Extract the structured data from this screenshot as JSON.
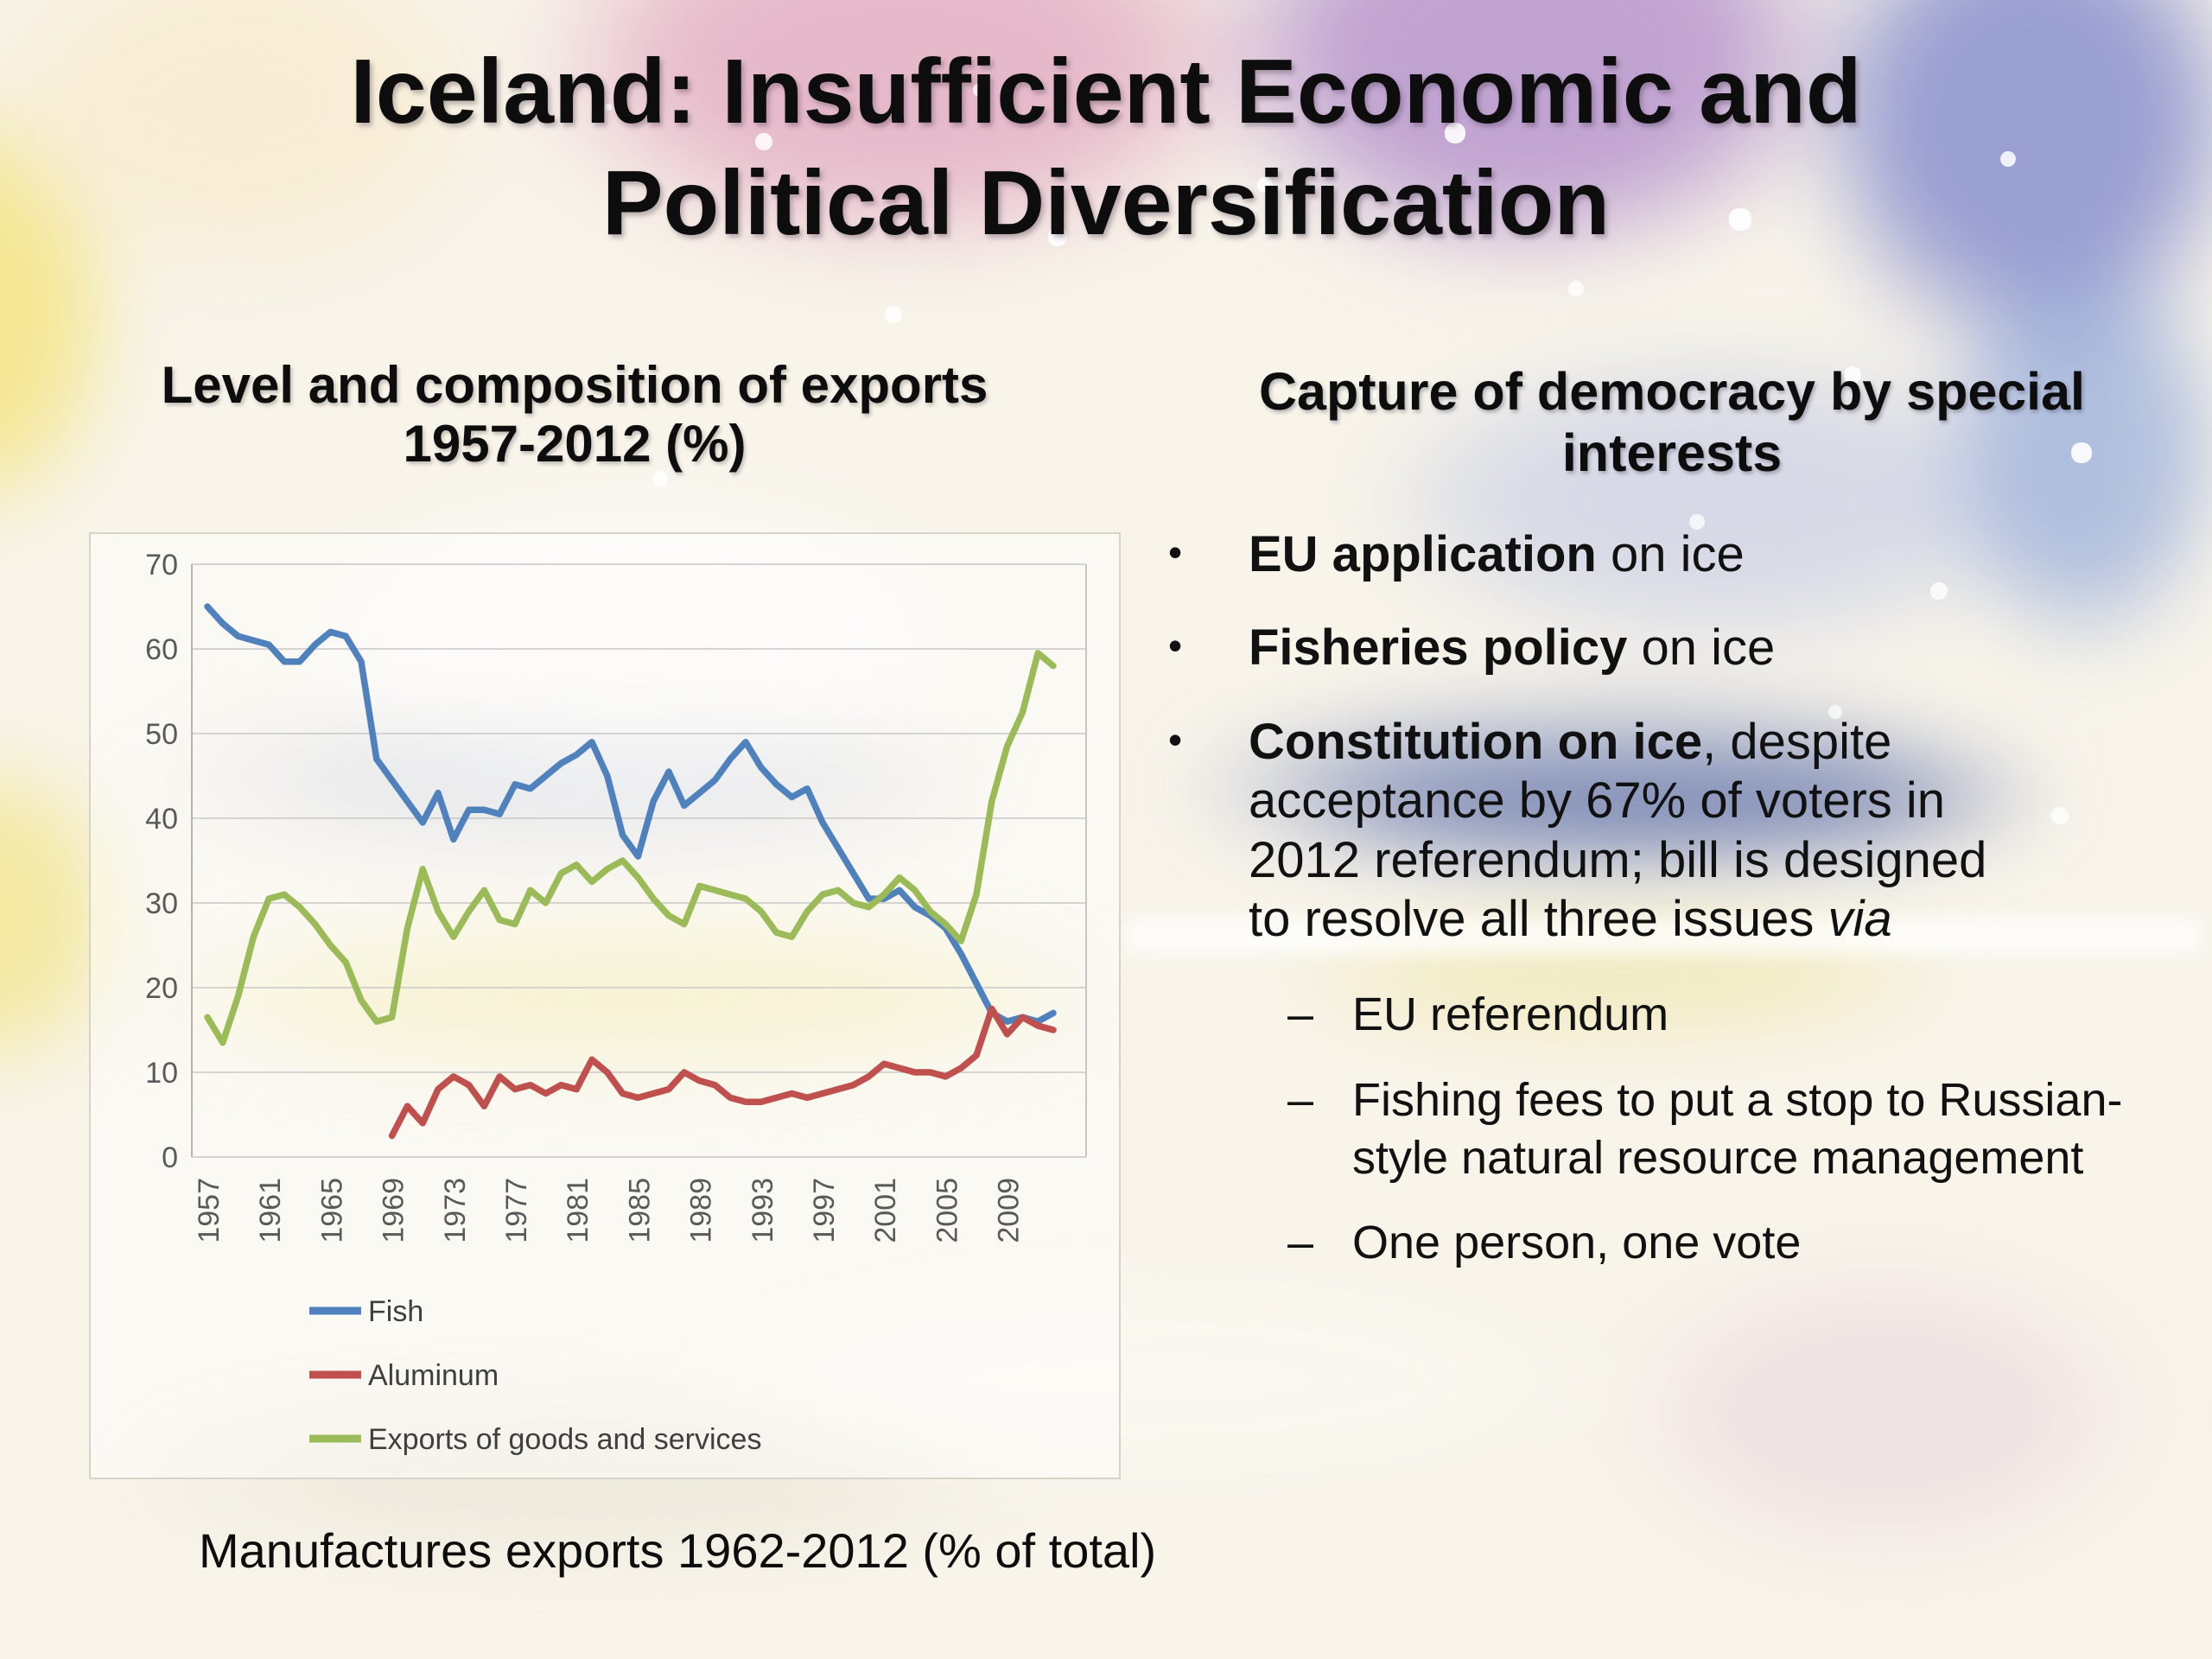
{
  "slide": {
    "title_lines": [
      "Iceland: Insufficient Economic and",
      "Political Diversification"
    ],
    "caption": "Manufactures exports 1962-2012 (% of total)"
  },
  "left": {
    "heading_lines": [
      "Level and composition of exports",
      "1957-2012 (%)"
    ]
  },
  "right": {
    "heading_lines": [
      "Capture of democracy by special",
      "interests"
    ],
    "bullets": [
      {
        "marker": "•",
        "bold": "EU application",
        "rest": " on ice",
        "italic": ""
      },
      {
        "marker": "•",
        "bold": "Fisheries policy",
        "rest": " on ice",
        "italic": ""
      },
      {
        "marker": "•",
        "bold": "Constitution on ice",
        "rest": ", despite acceptance by 67% of voters in 2012 referendum; bill is designed to resolve all three issues ",
        "italic": "via"
      }
    ],
    "sub_bullets": [
      {
        "marker": "–",
        "text": "EU referendum"
      },
      {
        "marker": "–",
        "text": "Fishing fees to put a stop to Russian-style natural resource management"
      },
      {
        "marker": "–",
        "text": "One person, one vote"
      }
    ]
  },
  "chart_data": {
    "type": "line",
    "title": "Level and composition of exports 1957-2012 (%)",
    "xlabel": "",
    "ylabel": "",
    "x_range": [
      1957,
      2012
    ],
    "x_ticks": [
      1957,
      1961,
      1965,
      1969,
      1973,
      1977,
      1981,
      1985,
      1989,
      1993,
      1997,
      2001,
      2005,
      2009
    ],
    "ylim": [
      0,
      70
    ],
    "y_step": 10,
    "y_tick_labels": [
      "0",
      "10",
      "20",
      "30",
      "40",
      "50",
      "60",
      "70"
    ],
    "grid": true,
    "legend_position": "bottom-left",
    "axis_color": "#595959",
    "grid_color": "#c8c8c8",
    "series": [
      {
        "name": "Fish",
        "color": "#4f81bd",
        "start_year": 1957,
        "values": [
          65,
          63,
          61.5,
          61,
          60.5,
          58.5,
          58.5,
          60.5,
          62,
          61.5,
          58.5,
          47,
          44.5,
          42,
          39.5,
          43,
          37.5,
          41,
          41,
          40.5,
          44,
          43.5,
          45,
          46.5,
          47.5,
          49,
          45,
          38,
          35.5,
          42,
          45.5,
          41.5,
          43,
          44.5,
          47,
          49,
          46,
          44,
          42.5,
          43.5,
          39.5,
          36.5,
          33.5,
          30.5,
          30.5,
          31.5,
          29.5,
          28.5,
          27,
          24,
          20.5,
          17,
          16,
          16.5,
          16,
          17
        ]
      },
      {
        "name": "Aluminum",
        "color": "#c0504d",
        "start_year": 1969,
        "values": [
          2.5,
          6,
          4,
          8,
          9.5,
          8.5,
          6,
          9.5,
          8,
          8.5,
          7.5,
          8.5,
          8,
          11.5,
          10,
          7.5,
          7,
          7.5,
          8,
          10,
          9,
          8.5,
          7,
          6.5,
          6.5,
          7,
          7.5,
          7,
          7.5,
          8,
          8.5,
          9.5,
          11,
          10.5,
          10,
          10,
          9.5,
          10.5,
          12,
          17.5,
          14.5,
          16.5,
          15.5,
          15
        ]
      },
      {
        "name": "Exports of goods and services",
        "color": "#9bbb59",
        "start_year": 1957,
        "values": [
          16.5,
          13.5,
          19,
          26,
          30.5,
          31,
          29.5,
          27.5,
          25,
          23,
          18.5,
          16,
          16.5,
          27,
          34,
          29,
          26,
          29,
          31.5,
          28,
          27.5,
          31.5,
          30,
          33.5,
          34.5,
          32.5,
          34,
          35,
          33,
          30.5,
          28.5,
          27.5,
          32,
          31.5,
          31,
          30.5,
          29,
          26.5,
          26,
          29,
          31,
          31.5,
          30,
          29.5,
          31,
          33,
          31.5,
          29,
          27.5,
          25.5,
          31,
          42,
          48.5,
          52.5,
          59.5,
          58
        ]
      }
    ]
  }
}
